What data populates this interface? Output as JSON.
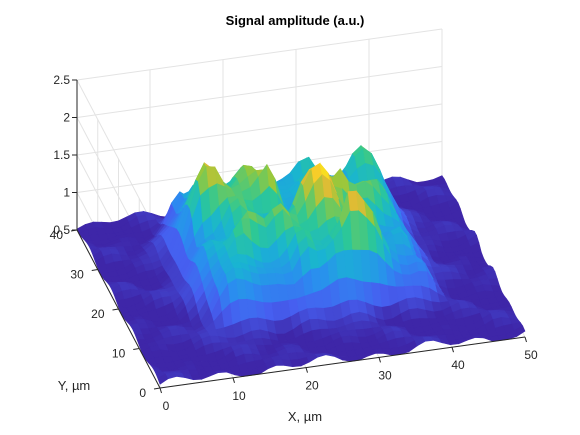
{
  "chart_data": {
    "type": "surface",
    "title": "Signal amplitude (a.u.)",
    "xlabel": "X, µm",
    "ylabel": "Y, µm",
    "zlabel": "",
    "xlim": [
      0,
      50
    ],
    "ylim": [
      0,
      40
    ],
    "zlim": [
      0.5,
      2.5
    ],
    "x_ticks": [
      "0",
      "10",
      "20",
      "30",
      "40",
      "50"
    ],
    "y_ticks": [
      "0",
      "10",
      "20",
      "30",
      "40"
    ],
    "z_ticks": [
      "0.5",
      "1",
      "1.5",
      "2",
      "2.5"
    ],
    "grid": true,
    "colormap": "parula",
    "background_level": 0.55,
    "plateau": {
      "x_range": [
        10,
        40
      ],
      "y_range": [
        10,
        35
      ],
      "mean_level": 1.45,
      "max_level": 2.15
    }
  }
}
